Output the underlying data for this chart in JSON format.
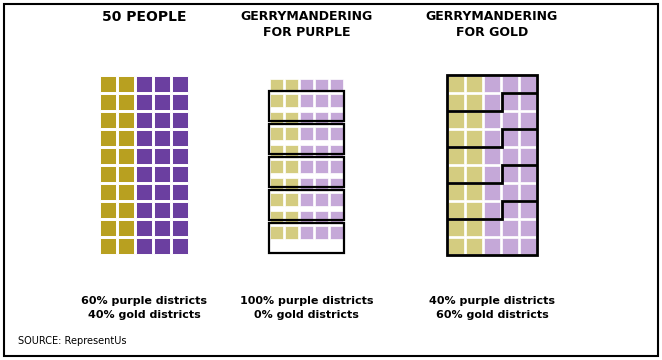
{
  "title1": "50 PEOPLE",
  "title2": "GERRYMANDERING\nFOR PURPLE",
  "title3": "GERRYMANDERING\nFOR GOLD",
  "subtitle1": "60% purple districts\n40% gold districts",
  "subtitle2": "100% purple districts\n0% gold districts",
  "subtitle3": "40% purple districts\n60% gold districts",
  "source": "SOURCE: RepresentUs",
  "purple_dark": "#6B3FA0",
  "purple_light": "#C5A8D8",
  "gold_dark": "#B8A020",
  "gold_light": "#D4CC80",
  "bg": "#FFFFFF",
  "border_color": "#000000"
}
